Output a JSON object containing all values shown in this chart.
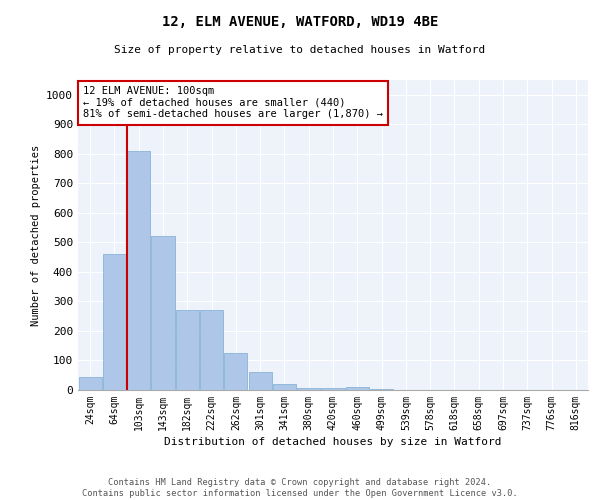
{
  "title": "12, ELM AVENUE, WATFORD, WD19 4BE",
  "subtitle": "Size of property relative to detached houses in Watford",
  "xlabel": "Distribution of detached houses by size in Watford",
  "ylabel": "Number of detached properties",
  "bar_color": "#aec6e8",
  "bar_edge_color": "#7aadd4",
  "bg_color": "#eef2fa",
  "grid_color": "#ffffff",
  "categories": [
    "24sqm",
    "64sqm",
    "103sqm",
    "143sqm",
    "182sqm",
    "222sqm",
    "262sqm",
    "301sqm",
    "341sqm",
    "380sqm",
    "420sqm",
    "460sqm",
    "499sqm",
    "539sqm",
    "578sqm",
    "618sqm",
    "658sqm",
    "697sqm",
    "737sqm",
    "776sqm",
    "816sqm"
  ],
  "values": [
    45,
    460,
    810,
    520,
    270,
    270,
    125,
    60,
    20,
    8,
    8,
    10,
    5,
    0,
    0,
    0,
    0,
    0,
    0,
    0,
    0
  ],
  "ylim": [
    0,
    1050
  ],
  "yticks": [
    0,
    100,
    200,
    300,
    400,
    500,
    600,
    700,
    800,
    900,
    1000
  ],
  "vline_index": 1.5,
  "property_label": "12 ELM AVENUE: 100sqm",
  "annotation_line1": "← 19% of detached houses are smaller (440)",
  "annotation_line2": "81% of semi-detached houses are larger (1,870) →",
  "annotation_box_color": "#ffffff",
  "annotation_box_edge": "#cc0000",
  "vline_color": "#cc0000",
  "footer_line1": "Contains HM Land Registry data © Crown copyright and database right 2024.",
  "footer_line2": "Contains public sector information licensed under the Open Government Licence v3.0."
}
